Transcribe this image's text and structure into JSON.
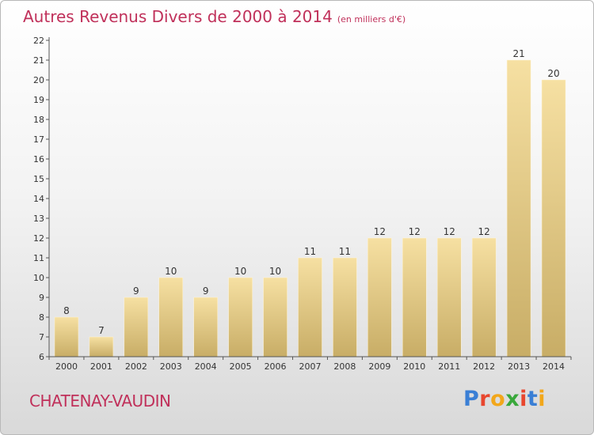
{
  "header": {
    "title": "Autres Revenus Divers de 2000 à 2014",
    "unit": "(en milliers d'€)"
  },
  "footer": {
    "town": "CHATENAY-VAUDIN",
    "logo_text": "Proxiti",
    "logo_colors": [
      "#3a7fd5",
      "#e8462e",
      "#f2a71b",
      "#39a83b",
      "#e8462e",
      "#3a7fd5",
      "#f2a71b"
    ]
  },
  "colors": {
    "title": "#c0305a",
    "bar_light": "#f6e0a2",
    "bar_dark": "#c8ad66",
    "axis": "#555555",
    "grid_tick": "#333333"
  },
  "chart_data": {
    "type": "bar",
    "title": "Autres Revenus Divers de 2000 à 2014",
    "subtitle": "(en milliers d'€)",
    "xlabel": "",
    "ylabel": "",
    "categories": [
      "2000",
      "2001",
      "2002",
      "2003",
      "2004",
      "2005",
      "2006",
      "2007",
      "2008",
      "2009",
      "2010",
      "2011",
      "2012",
      "2013",
      "2014"
    ],
    "values": [
      8,
      7,
      9,
      10,
      9,
      10,
      10,
      11,
      11,
      12,
      12,
      12,
      12,
      21,
      20
    ],
    "ylim": [
      6,
      22
    ],
    "yticks": [
      6,
      7,
      8,
      9,
      10,
      11,
      12,
      13,
      14,
      15,
      16,
      17,
      18,
      19,
      20,
      21,
      22
    ],
    "grid": false,
    "legend": "none",
    "data_labels": true
  }
}
